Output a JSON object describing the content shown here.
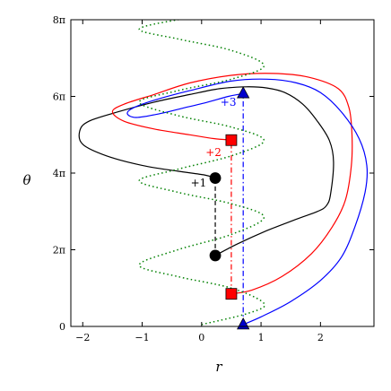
{
  "chart_data": {
    "type": "line",
    "xlabel": "r",
    "ylabel": "θ",
    "xlim": [
      -2.2,
      2.9
    ],
    "ylim": [
      0,
      8
    ],
    "y_unit": "π",
    "x_ticks": [
      -2,
      -1,
      0,
      1,
      2
    ],
    "x_tick_labels": [
      "−2",
      "−1",
      "0",
      "1",
      "2"
    ],
    "y_ticks": [
      0,
      2,
      4,
      6,
      8
    ],
    "y_tick_labels": [
      "0",
      "2π",
      "4π",
      "6π",
      "8π"
    ],
    "grid": false,
    "colors": {
      "black": "#000000",
      "red": "#ff0000",
      "blue": "#0000ff",
      "green": "#008000",
      "marker_red": "#ff0000",
      "marker_blue": "#0000cc"
    },
    "series": [
      {
        "color": "black",
        "style": "solid",
        "points": [
          [
            0.23,
            1.85
          ],
          [
            0.6,
            2.15
          ],
          [
            1.1,
            2.5
          ],
          [
            1.6,
            2.8
          ],
          [
            1.95,
            3.0
          ],
          [
            2.1,
            3.15
          ],
          [
            2.17,
            3.45
          ],
          [
            2.22,
            4.3
          ],
          [
            2.15,
            4.85
          ],
          [
            1.95,
            5.35
          ],
          [
            1.7,
            5.8
          ],
          [
            1.4,
            6.1
          ],
          [
            1.1,
            6.22
          ],
          [
            0.75,
            6.25
          ],
          [
            0.3,
            6.2
          ],
          [
            -0.2,
            6.05
          ],
          [
            -0.8,
            5.85
          ],
          [
            -1.4,
            5.6
          ],
          [
            -1.9,
            5.35
          ],
          [
            -2.05,
            5.1
          ],
          [
            -2.0,
            4.75
          ],
          [
            -1.6,
            4.45
          ],
          [
            -1.0,
            4.2
          ],
          [
            -0.4,
            4.05
          ],
          [
            0.05,
            3.95
          ],
          [
            0.23,
            3.87
          ]
        ]
      },
      {
        "color": "red",
        "style": "solid",
        "points": [
          [
            0.5,
            0.85
          ],
          [
            0.85,
            0.95
          ],
          [
            1.35,
            1.3
          ],
          [
            1.85,
            1.9
          ],
          [
            2.2,
            2.6
          ],
          [
            2.42,
            3.3
          ],
          [
            2.52,
            4.2
          ],
          [
            2.53,
            5.0
          ],
          [
            2.48,
            5.7
          ],
          [
            2.3,
            6.2
          ],
          [
            1.8,
            6.5
          ],
          [
            1.2,
            6.6
          ],
          [
            0.5,
            6.55
          ],
          [
            -0.2,
            6.35
          ],
          [
            -0.8,
            6.05
          ],
          [
            -1.3,
            5.8
          ],
          [
            -1.5,
            5.6
          ],
          [
            -1.3,
            5.35
          ],
          [
            -0.8,
            5.15
          ],
          [
            -0.2,
            5.0
          ],
          [
            0.2,
            4.9
          ],
          [
            0.5,
            4.86
          ]
        ]
      },
      {
        "color": "blue",
        "style": "solid",
        "points": [
          [
            0.7,
            0.05
          ],
          [
            1.0,
            0.25
          ],
          [
            1.5,
            0.65
          ],
          [
            2.0,
            1.2
          ],
          [
            2.35,
            1.8
          ],
          [
            2.58,
            2.6
          ],
          [
            2.75,
            3.5
          ],
          [
            2.78,
            4.2
          ],
          [
            2.65,
            4.9
          ],
          [
            2.35,
            5.6
          ],
          [
            2.0,
            6.1
          ],
          [
            1.6,
            6.35
          ],
          [
            1.1,
            6.45
          ],
          [
            0.5,
            6.4
          ],
          [
            -0.2,
            6.15
          ],
          [
            -0.8,
            5.9
          ],
          [
            -1.15,
            5.7
          ],
          [
            -1.25,
            5.55
          ],
          [
            -1.1,
            5.45
          ],
          [
            -0.7,
            5.55
          ],
          [
            -0.3,
            5.7
          ],
          [
            0.1,
            5.85
          ],
          [
            0.45,
            6.0
          ],
          [
            0.72,
            6.08
          ]
        ]
      },
      {
        "color": "green",
        "style": "dotted",
        "points": [
          [
            0.0,
            0.05
          ],
          [
            0.8,
            0.35
          ],
          [
            1.05,
            0.6
          ],
          [
            0.5,
            1.0
          ],
          [
            -0.4,
            1.3
          ],
          [
            -1.05,
            1.6
          ],
          [
            -0.4,
            2.0
          ],
          [
            0.5,
            2.4
          ],
          [
            1.05,
            2.85
          ],
          [
            0.5,
            3.2
          ],
          [
            -0.4,
            3.5
          ],
          [
            -1.05,
            3.8
          ],
          [
            -0.4,
            4.1
          ],
          [
            0.5,
            4.45
          ],
          [
            1.05,
            4.85
          ],
          [
            0.5,
            5.2
          ],
          [
            -0.4,
            5.5
          ],
          [
            -1.05,
            5.85
          ],
          [
            -0.4,
            6.15
          ],
          [
            0.5,
            6.45
          ],
          [
            1.05,
            6.8
          ],
          [
            0.5,
            7.2
          ],
          [
            -0.4,
            7.5
          ],
          [
            -1.05,
            7.75
          ],
          [
            -0.4,
            8.0
          ],
          [
            0.2,
            8.1
          ]
        ]
      }
    ],
    "connectors": [
      {
        "color": "black",
        "style": "dashed",
        "x": 0.23,
        "y": [
          1.85,
          3.87
        ]
      },
      {
        "color": "red",
        "style": "dashdot",
        "x": 0.5,
        "y": [
          0.85,
          4.86
        ]
      },
      {
        "color": "blue",
        "style": "dashdot",
        "x": 0.7,
        "y": [
          0.05,
          6.08
        ]
      }
    ],
    "markers": [
      {
        "shape": "circle",
        "color": "black",
        "x": 0.23,
        "y": 1.85
      },
      {
        "shape": "circle",
        "color": "black",
        "x": 0.23,
        "y": 3.87
      },
      {
        "shape": "square",
        "color": "marker_red",
        "x": 0.5,
        "y": 0.85
      },
      {
        "shape": "square",
        "color": "marker_red",
        "x": 0.5,
        "y": 4.86
      },
      {
        "shape": "triangle",
        "color": "marker_blue",
        "x": 0.7,
        "y": 0.05
      },
      {
        "shape": "triangle",
        "color": "marker_blue",
        "x": 0.7,
        "y": 6.08
      }
    ],
    "annotations": [
      {
        "text": "+1",
        "color": "black",
        "x": -0.05,
        "y": 3.65
      },
      {
        "text": "+2",
        "color": "red",
        "x": 0.2,
        "y": 4.45
      },
      {
        "text": "+3",
        "color": "blue",
        "x": 0.45,
        "y": 5.75
      }
    ]
  }
}
